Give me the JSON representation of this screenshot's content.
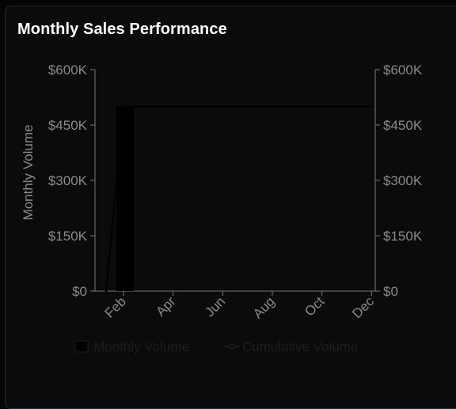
{
  "chart_data": {
    "type": "bar",
    "title": "Monthly Sales Performance",
    "xlabel": "",
    "ylabel": "Monthly Volume",
    "y2label": "",
    "ylim": [
      0,
      600000
    ],
    "y2lim": [
      0,
      600000
    ],
    "y_ticks": [
      0,
      150000,
      300000,
      450000,
      600000
    ],
    "y_tick_labels": [
      "$0",
      "$150K",
      "$300K",
      "$450K",
      "$600K"
    ],
    "y2_tick_labels": [
      "$0",
      "$150K",
      "$300K",
      "$450K",
      "$600K"
    ],
    "x_tick_labels": [
      "Feb",
      "Apr",
      "Jun",
      "Aug",
      "Oct",
      "Dec"
    ],
    "x_tick_months": [
      2,
      4,
      6,
      8,
      10,
      12
    ],
    "x_range_months": [
      1,
      12
    ],
    "series": [
      {
        "name": "Monthly Volume",
        "type": "bar",
        "color": "#000000",
        "points": [
          {
            "month": 2,
            "value": 500000
          }
        ]
      },
      {
        "name": "Cumulative Volume",
        "type": "line",
        "color": "#000000",
        "points": [
          {
            "month": 1.3,
            "value": 0
          },
          {
            "month": 2,
            "value": 500000
          },
          {
            "month": 12,
            "value": 500000
          }
        ]
      }
    ],
    "legend": "bottom-center",
    "grid": false
  }
}
